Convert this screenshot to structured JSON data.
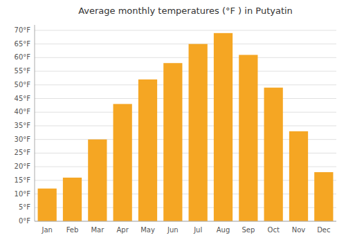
{
  "chart_data": {
    "type": "bar",
    "title": "Average monthly temperatures (°F ) in Putyatin",
    "categories": [
      "Jan",
      "Feb",
      "Mar",
      "Apr",
      "May",
      "Jun",
      "Jul",
      "Aug",
      "Sep",
      "Oct",
      "Nov",
      "Dec"
    ],
    "values": [
      12,
      16,
      30,
      43,
      52,
      58,
      65,
      69,
      61,
      49,
      33,
      18
    ],
    "color": "#F5A623",
    "ylim": [
      0,
      72
    ],
    "yticks": [
      {
        "value": 0,
        "label": "0°F"
      },
      {
        "value": 5,
        "label": "5°F"
      },
      {
        "value": 10,
        "label": "10°F"
      },
      {
        "value": 15,
        "label": "15°F"
      },
      {
        "value": 20,
        "label": "20°F"
      },
      {
        "value": 25,
        "label": "25°F"
      },
      {
        "value": 30,
        "label": "30°F"
      },
      {
        "value": 35,
        "label": "35°F"
      },
      {
        "value": 40,
        "label": "40°F"
      },
      {
        "value": 45,
        "label": "45°F"
      },
      {
        "value": 50,
        "label": "50°F"
      },
      {
        "value": 55,
        "label": "55°F"
      },
      {
        "value": 60,
        "label": "60°F"
      },
      {
        "value": 65,
        "label": "65°F"
      },
      {
        "value": 70,
        "label": "70°F"
      }
    ],
    "grid": true
  }
}
